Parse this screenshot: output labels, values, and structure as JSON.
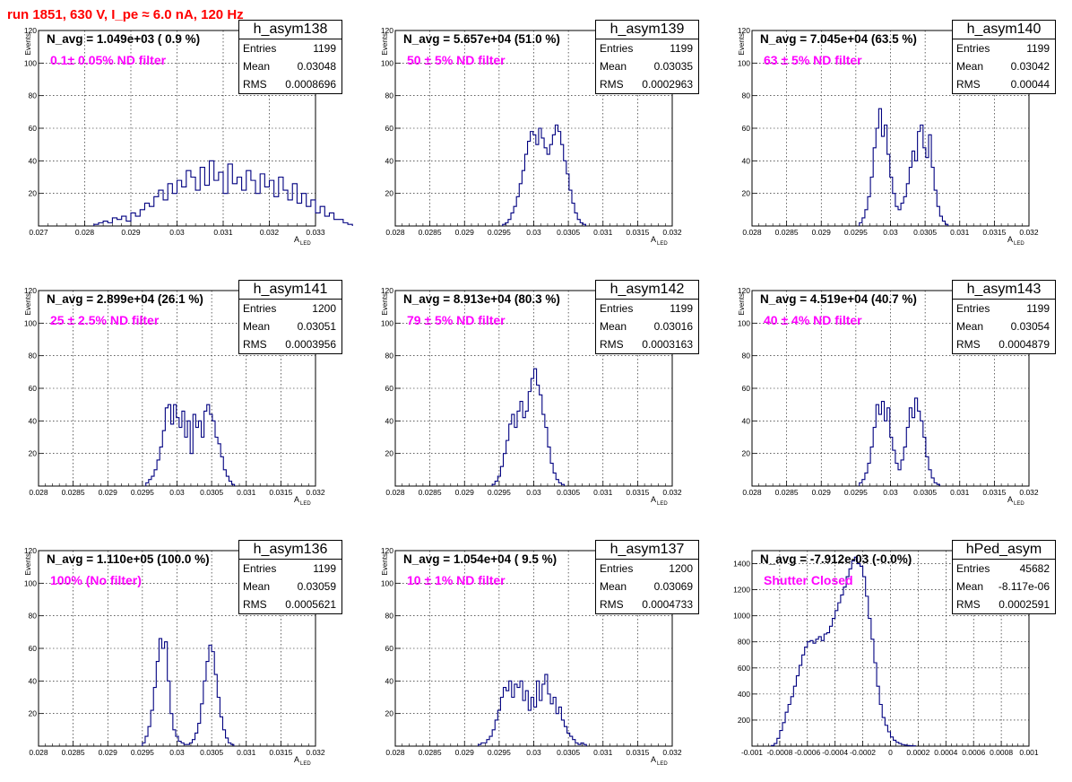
{
  "run_title": "run 1851,   630 V, I_pe ≈ 6.0 nA, 120 Hz",
  "colors": {
    "histogram_line": "#000080",
    "title_text": "#ff0000",
    "filter_text": "#ff00ff",
    "grid": "#000000"
  },
  "chart_data": [
    {
      "type": "bar",
      "histogram_name": "h_asym138",
      "title": "N_avg = 1.049e+03 ( 0.9 %)",
      "annotation": "0.1± 0.05% ND filter",
      "stats": {
        "entries": "1199",
        "mean": "0.03048",
        "rms": "0.0008696"
      },
      "stat_labels": {
        "entries": "Entries",
        "mean": "Mean",
        "rms": "RMS"
      },
      "ylabel": "Events",
      "xlabel": "A",
      "xlabel_sub": "LED",
      "xlim": [
        0.027,
        0.033
      ],
      "ylim": [
        0,
        120
      ],
      "x_ticks": [
        "0.027",
        "0.028",
        "0.029",
        "0.03",
        "0.031",
        "0.032",
        "0.033"
      ],
      "x_tick_values": [
        0.027,
        0.028,
        0.029,
        0.03,
        0.031,
        0.032,
        0.033
      ],
      "y_ticks": [
        "20",
        "40",
        "60",
        "80",
        "100",
        "120"
      ],
      "y_tick_values": [
        20,
        40,
        60,
        80,
        100,
        120
      ],
      "grid": true,
      "bin_low": 0.0282,
      "bin_width": 0.0001,
      "values": [
        1,
        2,
        3,
        2,
        5,
        4,
        6,
        3,
        8,
        6,
        10,
        14,
        12,
        18,
        22,
        16,
        26,
        20,
        28,
        24,
        34,
        30,
        22,
        36,
        25,
        40,
        28,
        33,
        20,
        38,
        26,
        30,
        22,
        34,
        28,
        20,
        32,
        24,
        28,
        18,
        30,
        22,
        16,
        26,
        14,
        20,
        12,
        16,
        8,
        12,
        6,
        8,
        4,
        4,
        2,
        1
      ]
    },
    {
      "type": "bar",
      "histogram_name": "h_asym139",
      "title": "N_avg = 5.657e+04 (51.0 %)",
      "annotation": "50 ± 5% ND filter",
      "stats": {
        "entries": "1199",
        "mean": "0.03035",
        "rms": "0.0002963"
      },
      "stat_labels": {
        "entries": "Entries",
        "mean": "Mean",
        "rms": "RMS"
      },
      "ylabel": "Events",
      "xlabel": "A",
      "xlabel_sub": "LED",
      "xlim": [
        0.028,
        0.032
      ],
      "ylim": [
        0,
        120
      ],
      "x_ticks": [
        "0.028",
        "0.0285",
        "0.029",
        "0.0295",
        "0.03",
        "0.0305",
        "0.031",
        "0.0315",
        "0.032"
      ],
      "x_tick_values": [
        0.028,
        0.0285,
        0.029,
        0.0295,
        0.03,
        0.0305,
        0.031,
        0.0315,
        0.032
      ],
      "y_ticks": [
        "20",
        "40",
        "60",
        "80",
        "100",
        "120"
      ],
      "y_tick_values": [
        20,
        40,
        60,
        80,
        100,
        120
      ],
      "grid": true,
      "bin_low": 0.02955,
      "bin_width": 4e-05,
      "values": [
        1,
        2,
        4,
        8,
        12,
        18,
        26,
        34,
        44,
        52,
        58,
        56,
        50,
        60,
        54,
        48,
        44,
        50,
        56,
        62,
        58,
        50,
        40,
        32,
        22,
        14,
        8,
        4,
        2,
        1
      ]
    },
    {
      "type": "bar",
      "histogram_name": "h_asym140",
      "title": "N_avg = 7.045e+04 (63.5 %)",
      "annotation": "63 ± 5% ND filter",
      "stats": {
        "entries": "1199",
        "mean": "0.03042",
        "rms": "0.00044"
      },
      "stat_labels": {
        "entries": "Entries",
        "mean": "Mean",
        "rms": "RMS"
      },
      "ylabel": "Events",
      "xlabel": "A",
      "xlabel_sub": "LED",
      "xlim": [
        0.028,
        0.032
      ],
      "ylim": [
        0,
        120
      ],
      "x_ticks": [
        "0.028",
        "0.0285",
        "0.029",
        "0.0295",
        "0.03",
        "0.0305",
        "0.031",
        "0.0315",
        "0.032"
      ],
      "x_tick_values": [
        0.028,
        0.0285,
        0.029,
        0.0295,
        0.03,
        0.0305,
        0.031,
        0.0315,
        0.032
      ],
      "y_ticks": [
        "20",
        "40",
        "60",
        "80",
        "100",
        "120"
      ],
      "y_tick_values": [
        20,
        40,
        60,
        80,
        100,
        120
      ],
      "grid": true,
      "bin_low": 0.02955,
      "bin_width": 4e-05,
      "values": [
        2,
        5,
        10,
        18,
        30,
        48,
        60,
        72,
        55,
        62,
        44,
        30,
        20,
        12,
        10,
        14,
        18,
        26,
        36,
        46,
        40,
        58,
        62,
        48,
        42,
        56,
        36,
        22,
        12,
        6,
        3,
        1
      ]
    },
    {
      "type": "bar",
      "histogram_name": "h_asym141",
      "title": "N_avg = 2.899e+04 (26.1 %)",
      "annotation": "25 ± 2.5% ND filter",
      "stats": {
        "entries": "1200",
        "mean": "0.03051",
        "rms": "0.0003956"
      },
      "stat_labels": {
        "entries": "Entries",
        "mean": "Mean",
        "rms": "RMS"
      },
      "ylabel": "Events",
      "xlabel": "A",
      "xlabel_sub": "LED",
      "xlim": [
        0.028,
        0.032
      ],
      "ylim": [
        0,
        120
      ],
      "x_ticks": [
        "0.028",
        "0.0285",
        "0.029",
        "0.0295",
        "0.03",
        "0.0305",
        "0.031",
        "0.0315",
        "0.032"
      ],
      "x_tick_values": [
        0.028,
        0.0285,
        0.029,
        0.0295,
        0.03,
        0.0305,
        0.031,
        0.0315,
        0.032
      ],
      "y_ticks": [
        "20",
        "40",
        "60",
        "80",
        "100",
        "120"
      ],
      "y_tick_values": [
        20,
        40,
        60,
        80,
        100,
        120
      ],
      "grid": true,
      "bin_low": 0.02955,
      "bin_width": 4e-05,
      "values": [
        2,
        4,
        6,
        10,
        16,
        24,
        34,
        48,
        50,
        38,
        50,
        42,
        36,
        46,
        30,
        40,
        20,
        44,
        36,
        40,
        30,
        46,
        50,
        44,
        40,
        30,
        26,
        18,
        10,
        6,
        3,
        1
      ]
    },
    {
      "type": "bar",
      "histogram_name": "h_asym142",
      "title": "N_avg = 8.913e+04 (80.3 %)",
      "annotation": "79 ± 5% ND filter",
      "stats": {
        "entries": "1199",
        "mean": "0.03016",
        "rms": "0.0003163"
      },
      "stat_labels": {
        "entries": "Entries",
        "mean": "Mean",
        "rms": "RMS"
      },
      "ylabel": "Events",
      "xlabel": "A",
      "xlabel_sub": "LED",
      "xlim": [
        0.028,
        0.032
      ],
      "ylim": [
        0,
        120
      ],
      "x_ticks": [
        "0.028",
        "0.0285",
        "0.029",
        "0.0295",
        "0.03",
        "0.0305",
        "0.031",
        "0.0315",
        "0.032"
      ],
      "x_tick_values": [
        0.028,
        0.0285,
        0.029,
        0.0295,
        0.03,
        0.0305,
        0.031,
        0.0315,
        0.032
      ],
      "y_ticks": [
        "20",
        "40",
        "60",
        "80",
        "100",
        "120"
      ],
      "y_tick_values": [
        20,
        40,
        60,
        80,
        100,
        120
      ],
      "grid": true,
      "bin_low": 0.0294,
      "bin_width": 4e-05,
      "values": [
        1,
        3,
        6,
        12,
        20,
        28,
        38,
        44,
        36,
        46,
        52,
        42,
        46,
        58,
        66,
        72,
        62,
        56,
        44,
        36,
        24,
        14,
        8,
        4,
        2,
        1
      ]
    },
    {
      "type": "bar",
      "histogram_name": "h_asym143",
      "title": "N_avg = 4.519e+04 (40.7 %)",
      "annotation": "40 ± 4% ND filter",
      "stats": {
        "entries": "1199",
        "mean": "0.03054",
        "rms": "0.0004879"
      },
      "stat_labels": {
        "entries": "Entries",
        "mean": "Mean",
        "rms": "RMS"
      },
      "ylabel": "Events",
      "xlabel": "A",
      "xlabel_sub": "LED",
      "xlim": [
        0.028,
        0.032
      ],
      "ylim": [
        0,
        120
      ],
      "x_ticks": [
        "0.028",
        "0.0285",
        "0.029",
        "0.0295",
        "0.03",
        "0.0305",
        "0.031",
        "0.0315",
        "0.032"
      ],
      "x_tick_values": [
        0.028,
        0.0285,
        0.029,
        0.0295,
        0.03,
        0.0305,
        0.031,
        0.0315,
        0.032
      ],
      "y_ticks": [
        "20",
        "40",
        "60",
        "80",
        "100",
        "120"
      ],
      "y_tick_values": [
        20,
        40,
        60,
        80,
        100,
        120
      ],
      "grid": true,
      "bin_low": 0.02955,
      "bin_width": 4e-05,
      "values": [
        2,
        4,
        8,
        14,
        24,
        36,
        50,
        44,
        52,
        40,
        48,
        30,
        22,
        14,
        10,
        16,
        24,
        36,
        48,
        42,
        54,
        46,
        40,
        30,
        18,
        10,
        5,
        2,
        1
      ]
    },
    {
      "type": "bar",
      "histogram_name": "h_asym136",
      "title": "N_avg = 1.110e+05 (100.0 %)",
      "annotation": "100% (No filter)",
      "stats": {
        "entries": "1199",
        "mean": "0.03059",
        "rms": "0.0005621"
      },
      "stat_labels": {
        "entries": "Entries",
        "mean": "Mean",
        "rms": "RMS"
      },
      "ylabel": "Events",
      "xlabel": "A",
      "xlabel_sub": "LED",
      "xlim": [
        0.028,
        0.032
      ],
      "ylim": [
        0,
        120
      ],
      "x_ticks": [
        "0.028",
        "0.0285",
        "0.029",
        "0.0295",
        "0.03",
        "0.0305",
        "0.031",
        "0.0315",
        "0.032"
      ],
      "x_tick_values": [
        0.028,
        0.0285,
        0.029,
        0.0295,
        0.03,
        0.0305,
        0.031,
        0.0315,
        0.032
      ],
      "y_ticks": [
        "20",
        "40",
        "60",
        "80",
        "100",
        "120"
      ],
      "y_tick_values": [
        20,
        40,
        60,
        80,
        100,
        120
      ],
      "grid": true,
      "bin_low": 0.0295,
      "bin_width": 4e-05,
      "values": [
        2,
        6,
        12,
        22,
        36,
        52,
        66,
        60,
        64,
        40,
        20,
        10,
        6,
        3,
        2,
        1,
        1,
        2,
        4,
        8,
        14,
        26,
        40,
        52,
        62,
        58,
        44,
        30,
        18,
        10,
        5,
        2,
        1
      ]
    },
    {
      "type": "bar",
      "histogram_name": "h_asym137",
      "title": "N_avg = 1.054e+04 ( 9.5 %)",
      "annotation": "10 ± 1% ND filter",
      "stats": {
        "entries": "1200",
        "mean": "0.03069",
        "rms": "0.0004733"
      },
      "stat_labels": {
        "entries": "Entries",
        "mean": "Mean",
        "rms": "RMS"
      },
      "ylabel": "Events",
      "xlabel": "A",
      "xlabel_sub": "LED",
      "xlim": [
        0.028,
        0.032
      ],
      "ylim": [
        0,
        120
      ],
      "x_ticks": [
        "0.028",
        "0.0285",
        "0.029",
        "0.0295",
        "0.03",
        "0.0305",
        "0.031",
        "0.0315",
        "0.032"
      ],
      "x_tick_values": [
        0.028,
        0.0285,
        0.029,
        0.0295,
        0.03,
        0.0305,
        0.031,
        0.0315,
        0.032
      ],
      "y_ticks": [
        "20",
        "40",
        "60",
        "80",
        "100",
        "120"
      ],
      "y_tick_values": [
        20,
        40,
        60,
        80,
        100,
        120
      ],
      "grid": true,
      "bin_low": 0.0292,
      "bin_width": 4e-05,
      "values": [
        1,
        2,
        2,
        4,
        6,
        10,
        16,
        22,
        30,
        36,
        34,
        40,
        30,
        38,
        36,
        40,
        28,
        34,
        22,
        30,
        24,
        40,
        28,
        38,
        44,
        32,
        26,
        30,
        20,
        24,
        16,
        12,
        8,
        6,
        4,
        2,
        1,
        2,
        1
      ]
    },
    {
      "type": "bar",
      "histogram_name": "hPed_asym",
      "title": "N_avg = -7.912e-03 (-0.0%)",
      "annotation": "Shutter Closed",
      "stats": {
        "entries": "45682",
        "mean": "-8.117e-06",
        "rms": "0.0002591"
      },
      "stat_labels": {
        "entries": "Entries",
        "mean": "Mean",
        "rms": "RMS"
      },
      "ylabel": "",
      "xlabel": "",
      "xlabel_sub": "",
      "xlim": [
        -0.001,
        0.001
      ],
      "ylim": [
        0,
        1500
      ],
      "x_ticks": [
        "-0.001",
        "-0.0008",
        "-0.0006",
        "-0.0004",
        "-0.0002",
        "0",
        "0.0002",
        "0.0004",
        "0.0006",
        "0.0008",
        "0.001"
      ],
      "x_tick_values": [
        -0.001,
        -0.0008,
        -0.0006,
        -0.0004,
        -0.0002,
        0,
        0.0002,
        0.0004,
        0.0006,
        0.0008,
        0.001
      ],
      "y_ticks": [
        "200",
        "400",
        "600",
        "800",
        "1000",
        "1200",
        "1400"
      ],
      "y_tick_values": [
        200,
        400,
        600,
        800,
        1000,
        1200,
        1400
      ],
      "grid": true,
      "bin_low": -0.00086,
      "bin_width": 2e-05,
      "values": [
        5,
        20,
        60,
        120,
        180,
        260,
        320,
        380,
        460,
        540,
        620,
        700,
        760,
        800,
        810,
        790,
        820,
        840,
        810,
        860,
        870,
        920,
        980,
        1040,
        1100,
        1160,
        1220,
        1300,
        1360,
        1420,
        1450,
        1400,
        1380,
        1300,
        1150,
        980,
        820,
        640,
        460,
        320,
        220,
        160,
        110,
        70,
        45,
        30,
        20,
        12,
        8,
        5,
        3,
        2
      ]
    }
  ]
}
